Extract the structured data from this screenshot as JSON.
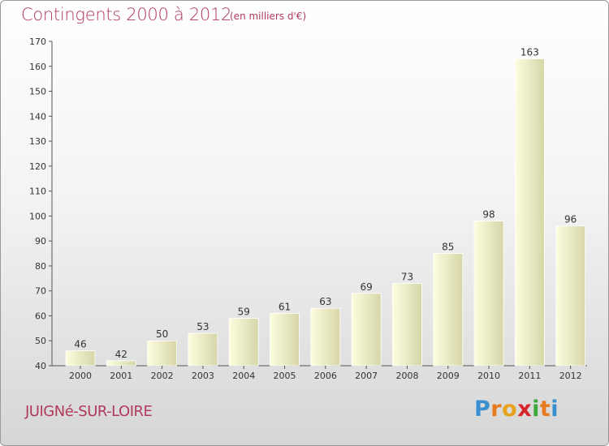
{
  "title": "Contingents 2000 à 2012",
  "subtitle": "(en milliers d'€)",
  "place": "JUIGNé-SUR-LOIRE",
  "brand": {
    "letters": [
      "P",
      "r",
      "o",
      "x",
      "i",
      "t",
      "i"
    ],
    "colors": [
      "#3a8fd0",
      "#e87a1e",
      "#e8a21e",
      "#d6252a",
      "#3aa83a",
      "#e87a1e",
      "#3a8fd0"
    ]
  },
  "colors": {
    "title": "#b03a5b",
    "bar_light": "#fdfde0",
    "bar_dark": "#d6d6a8"
  },
  "chart_data": {
    "type": "bar",
    "title": "Contingents 2000 à 2012",
    "subtitle": "(en milliers d'€)",
    "categories": [
      "2000",
      "2001",
      "2002",
      "2003",
      "2004",
      "2005",
      "2006",
      "2007",
      "2008",
      "2009",
      "2010",
      "2011",
      "2012"
    ],
    "values": [
      46,
      42,
      50,
      53,
      59,
      61,
      63,
      69,
      73,
      85,
      98,
      163,
      96
    ],
    "ylim": [
      40,
      170
    ],
    "yticks": [
      40,
      50,
      60,
      70,
      80,
      90,
      100,
      110,
      120,
      130,
      140,
      150,
      160,
      170
    ],
    "grid": false,
    "legend": "none"
  }
}
